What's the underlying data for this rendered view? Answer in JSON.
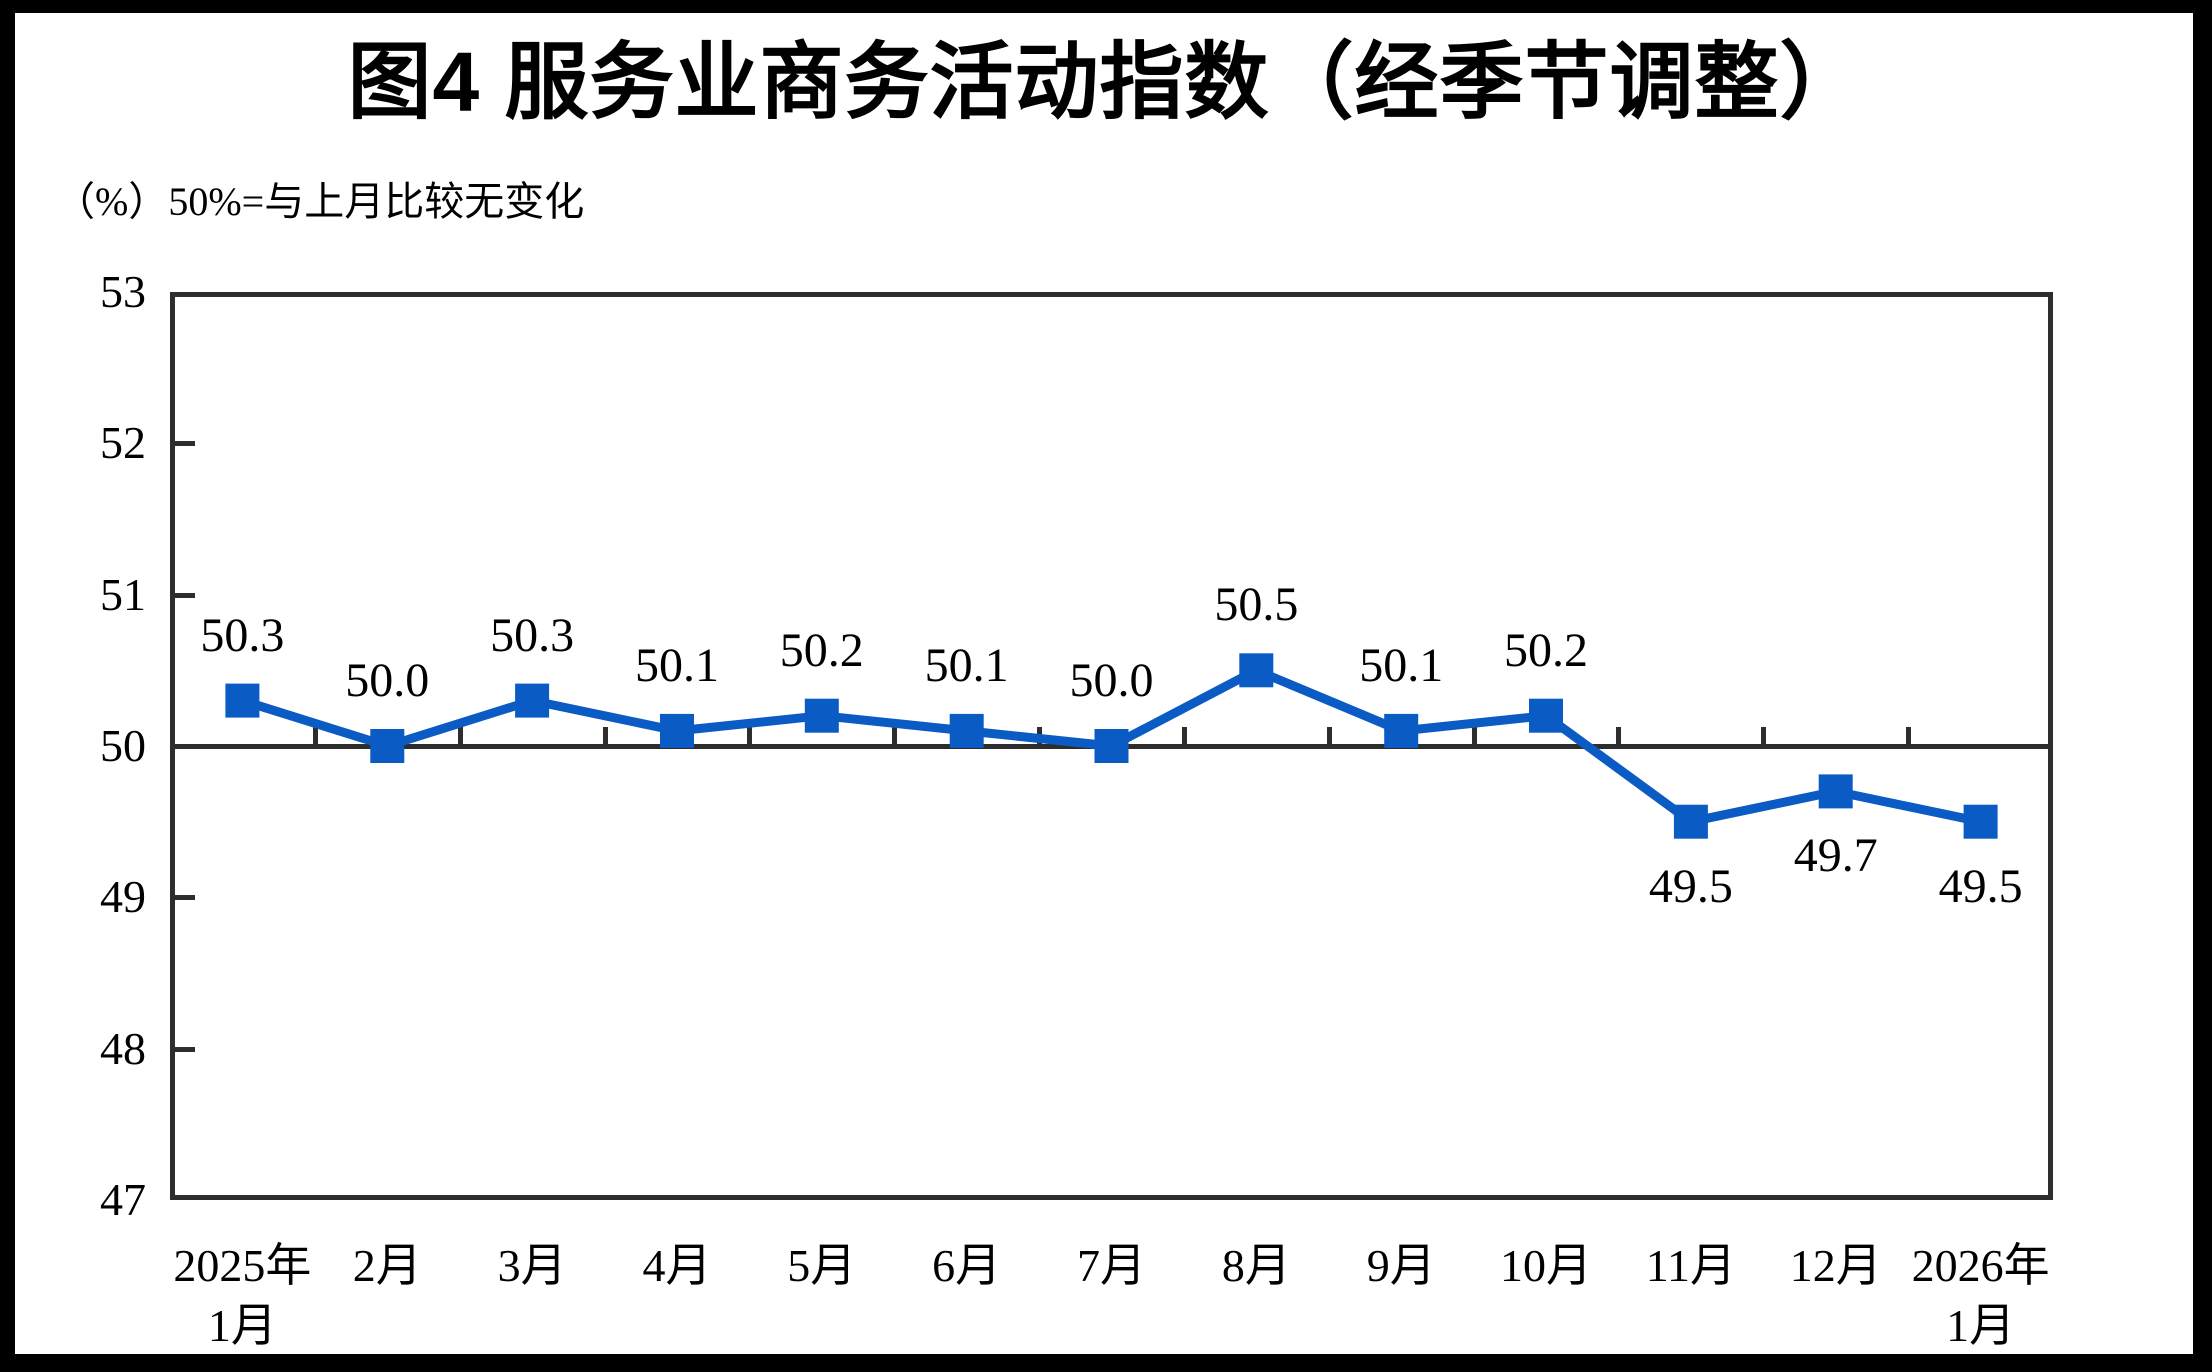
{
  "page": {
    "title": "图4  服务业商务活动指数（经季节调整）",
    "unit_note": "（%）50%=与上月比较无变化"
  },
  "chart_data": {
    "type": "line",
    "title": "图4 服务业商务活动指数（经季节调整）",
    "unit_label": "（%）50%=与上月比较无变化",
    "categories": [
      "2025年\n1月",
      "2月",
      "3月",
      "4月",
      "5月",
      "6月",
      "7月",
      "8月",
      "9月",
      "10月",
      "11月",
      "12月",
      "2026年\n1月"
    ],
    "values": [
      50.3,
      50.0,
      50.3,
      50.1,
      50.2,
      50.1,
      50.0,
      50.5,
      50.1,
      50.2,
      49.5,
      49.7,
      49.5
    ],
    "data_labels": [
      "50.3",
      "50.0",
      "50.3",
      "50.1",
      "50.2",
      "50.1",
      "50.0",
      "50.5",
      "50.1",
      "50.2",
      "49.5",
      "49.7",
      "49.5"
    ],
    "ylim": [
      47,
      53
    ],
    "yticks": [
      47,
      48,
      49,
      50,
      51,
      52,
      53
    ],
    "reference_line": 50,
    "grid": false,
    "legend_position": "none",
    "line_color": "#0b5bc4",
    "marker": "square",
    "frame_color": "#2d2d2d",
    "text_color": "#000000"
  }
}
